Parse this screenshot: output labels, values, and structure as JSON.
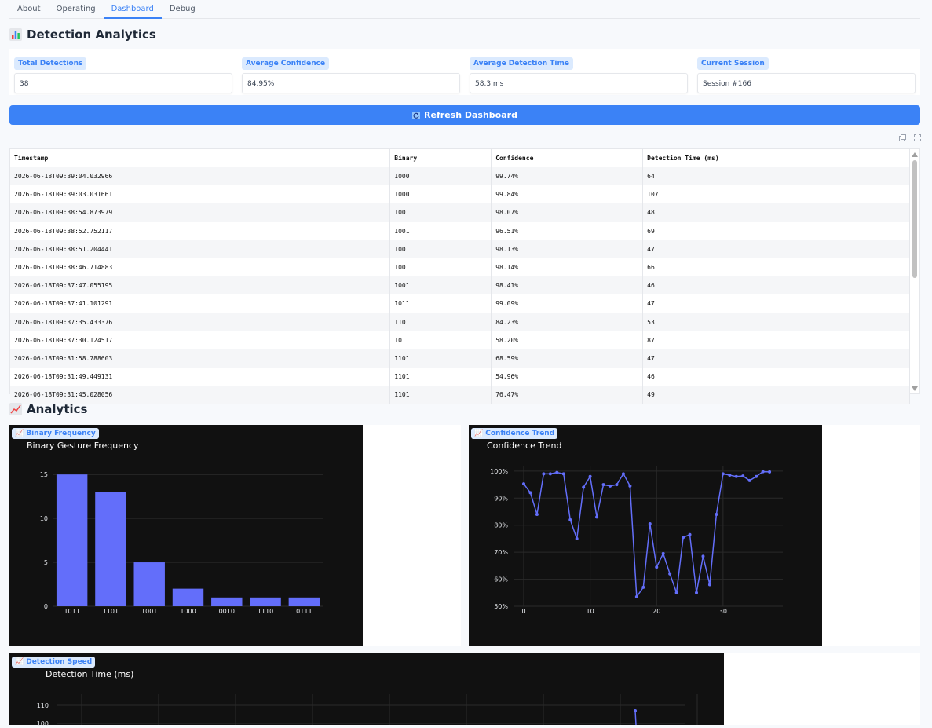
{
  "tabs": [
    {
      "label": "About"
    },
    {
      "label": "Operating"
    },
    {
      "label": "Dashboard"
    },
    {
      "label": "Debug"
    }
  ],
  "header": {
    "title": "Detection Analytics",
    "icon": "bar-chart-icon"
  },
  "stats": [
    {
      "label": "Total Detections",
      "value": "38"
    },
    {
      "label": "Average Confidence",
      "value": "84.95%"
    },
    {
      "label": "Average Detection Time",
      "value": "58.3 ms"
    },
    {
      "label": "Current Session",
      "value": "Session #166"
    }
  ],
  "refresh_button": {
    "label": "Refresh Dashboard",
    "icon": "refresh-icon"
  },
  "table_tools": {
    "copy_icon": "copy-icon",
    "fullscreen_icon": "fullscreen-icon"
  },
  "table": {
    "columns": [
      "Timestamp",
      "Binary",
      "Confidence",
      "Detection Time (ms)"
    ],
    "rows": [
      [
        "2026-06-18T09:39:04.032966",
        "1000",
        "99.74%",
        "64"
      ],
      [
        "2026-06-18T09:39:03.031661",
        "1000",
        "99.84%",
        "107"
      ],
      [
        "2026-06-18T09:38:54.873979",
        "1001",
        "98.07%",
        "48"
      ],
      [
        "2026-06-18T09:38:52.752117",
        "1001",
        "96.51%",
        "69"
      ],
      [
        "2026-06-18T09:38:51.204441",
        "1001",
        "98.13%",
        "47"
      ],
      [
        "2026-06-18T09:38:46.714883",
        "1001",
        "98.14%",
        "66"
      ],
      [
        "2026-06-18T09:37:47.055195",
        "1001",
        "98.41%",
        "46"
      ],
      [
        "2026-06-18T09:37:41.101291",
        "1011",
        "99.09%",
        "47"
      ],
      [
        "2026-06-18T09:37:35.433376",
        "1101",
        "84.23%",
        "53"
      ],
      [
        "2026-06-18T09:37:30.124517",
        "1011",
        "58.20%",
        "87"
      ],
      [
        "2026-06-18T09:31:58.788603",
        "1101",
        "68.59%",
        "47"
      ],
      [
        "2026-06-18T09:31:49.449131",
        "1101",
        "54.96%",
        "46"
      ],
      [
        "2026-06-18T09:31:45.028056",
        "1101",
        "76.47%",
        "49"
      ]
    ]
  },
  "analytics": {
    "title": "Analytics",
    "icon": "line-chart-icon"
  },
  "charts": {
    "binary": {
      "badge": "Binary Frequency",
      "title": "Binary Gesture Frequency"
    },
    "confidence": {
      "badge": "Confidence Trend",
      "title": "Confidence Trend"
    },
    "speed": {
      "badge": "Detection Speed",
      "title": "Detection Time (ms)"
    }
  },
  "colors": {
    "accent": "#3b82f6",
    "series": "#636efa",
    "plot_bg": "#111111"
  },
  "chart_data": [
    {
      "type": "bar",
      "title": "Binary Gesture Frequency",
      "categories": [
        "1011",
        "1101",
        "1001",
        "1000",
        "0010",
        "1110",
        "0111"
      ],
      "values": [
        15,
        13,
        5,
        2,
        1,
        1,
        1
      ],
      "ylim": [
        0,
        16
      ],
      "yticks": [
        0,
        5,
        10,
        15
      ]
    },
    {
      "type": "line",
      "title": "Confidence Trend",
      "x": [
        0,
        1,
        2,
        3,
        4,
        5,
        6,
        7,
        8,
        9,
        10,
        11,
        12,
        13,
        14,
        15,
        16,
        17,
        18,
        19,
        20,
        21,
        22,
        23,
        24,
        25,
        26,
        27,
        28,
        29,
        30,
        31,
        32,
        33,
        34,
        35,
        36,
        37
      ],
      "y": [
        95.3,
        92,
        84,
        99,
        99,
        99.5,
        99,
        82,
        75,
        94,
        98,
        83,
        95,
        94.5,
        95,
        99,
        94.5,
        53.5,
        57,
        80.5,
        64.5,
        69.5,
        62,
        55,
        75.5,
        76.5,
        55,
        68.5,
        58,
        84,
        99,
        98.5,
        98,
        98.2,
        96.5,
        98,
        99.8,
        99.7
      ],
      "ylim": [
        50,
        102
      ],
      "yticks": [
        50,
        60,
        70,
        80,
        90,
        100
      ],
      "yticklabels": [
        "50%",
        "60%",
        "70%",
        "80%",
        "90%",
        "100%"
      ],
      "xticks": [
        0,
        10,
        20,
        30
      ]
    },
    {
      "type": "line",
      "title": "Detection Time (ms)",
      "yticks": [
        100,
        110
      ]
    }
  ]
}
